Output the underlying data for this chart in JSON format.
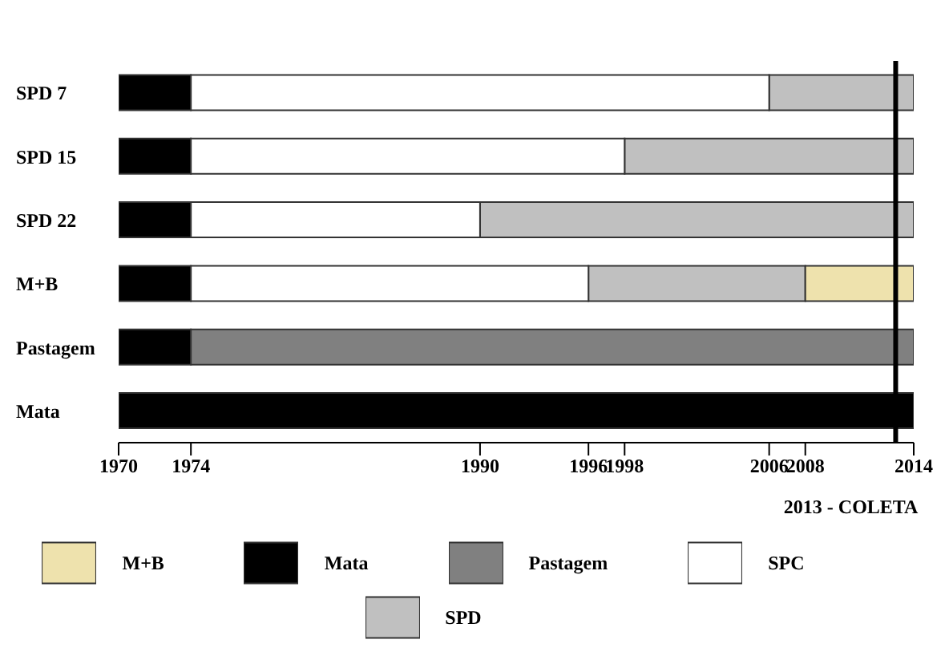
{
  "chart_data": {
    "type": "bar",
    "orientation": "horizontal",
    "categories": [
      "SPD  7",
      "SPD  15",
      "SPD  22",
      "M+B",
      "Pastagem",
      "Mata"
    ],
    "series": [
      {
        "name": "Mata",
        "color": "#000000",
        "base": [
          1970,
          1970,
          1970,
          1970,
          1970,
          1970
        ],
        "values": [
          4,
          4,
          4,
          4,
          4,
          44
        ]
      },
      {
        "name": "Pastagem",
        "color": "#808080",
        "base": [
          null,
          null,
          null,
          null,
          1974,
          null
        ],
        "values": [
          null,
          null,
          null,
          null,
          40,
          null
        ]
      },
      {
        "name": "SPD",
        "color": "#c0c0c0",
        "base": [
          2006,
          1998,
          1990,
          1996,
          null,
          null
        ],
        "values": [
          8,
          16,
          24,
          12,
          null,
          null
        ]
      },
      {
        "name": "SPC",
        "color": "#ffffff",
        "base": [
          1974,
          1974,
          1974,
          1974,
          null,
          null
        ],
        "values": [
          32,
          24,
          16,
          22,
          null,
          null
        ]
      },
      {
        "name": "M+B",
        "color": "#eee2ad",
        "base": [
          null,
          null,
          null,
          2008,
          null,
          null
        ],
        "values": [
          null,
          null,
          null,
          6,
          null,
          null
        ]
      }
    ],
    "xlim": [
      1970,
      2014
    ],
    "xticks": [
      1970,
      1974,
      1990,
      1996,
      1998,
      2006,
      2008,
      2014
    ],
    "ref_lines": [
      {
        "axis": "x",
        "value": 2013,
        "label": "2013 - COLETA"
      }
    ],
    "grid": false,
    "legend": "bottom"
  }
}
